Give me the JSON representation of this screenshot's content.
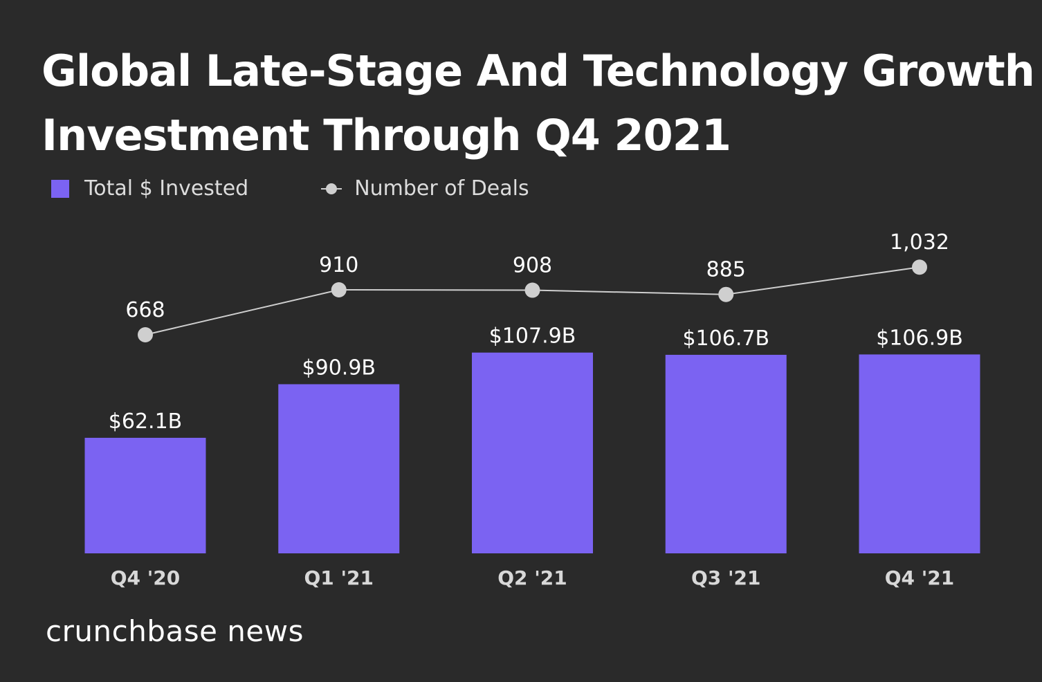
{
  "chart_data": {
    "type": "bar",
    "title": "Global Late-Stage And Technology Growth Investment Through Q4 2021",
    "categories": [
      "Q4 '20",
      "Q1 '21",
      "Q2 '21",
      "Q3 '21",
      "Q4 '21"
    ],
    "series": [
      {
        "name": "Total $ Invested",
        "type": "bar",
        "values": [
          62.1,
          90.9,
          107.9,
          106.7,
          106.9
        ],
        "labels": [
          "$62.1B",
          "$90.9B",
          "$107.9B",
          "$106.7B",
          "$106.9B"
        ],
        "color": "#7b63f2"
      },
      {
        "name": "Number of Deals",
        "type": "line",
        "values": [
          668,
          910,
          908,
          885,
          1032
        ],
        "labels": [
          "668",
          "910",
          "908",
          "885",
          "1,032"
        ],
        "color": "#cfcfcf"
      }
    ],
    "legend": "top-left",
    "grid": false
  },
  "brand": "crunchbase news",
  "colors": {
    "background": "#2a2a2a",
    "bar": "#7b63f2",
    "line": "#cfcfcf"
  }
}
